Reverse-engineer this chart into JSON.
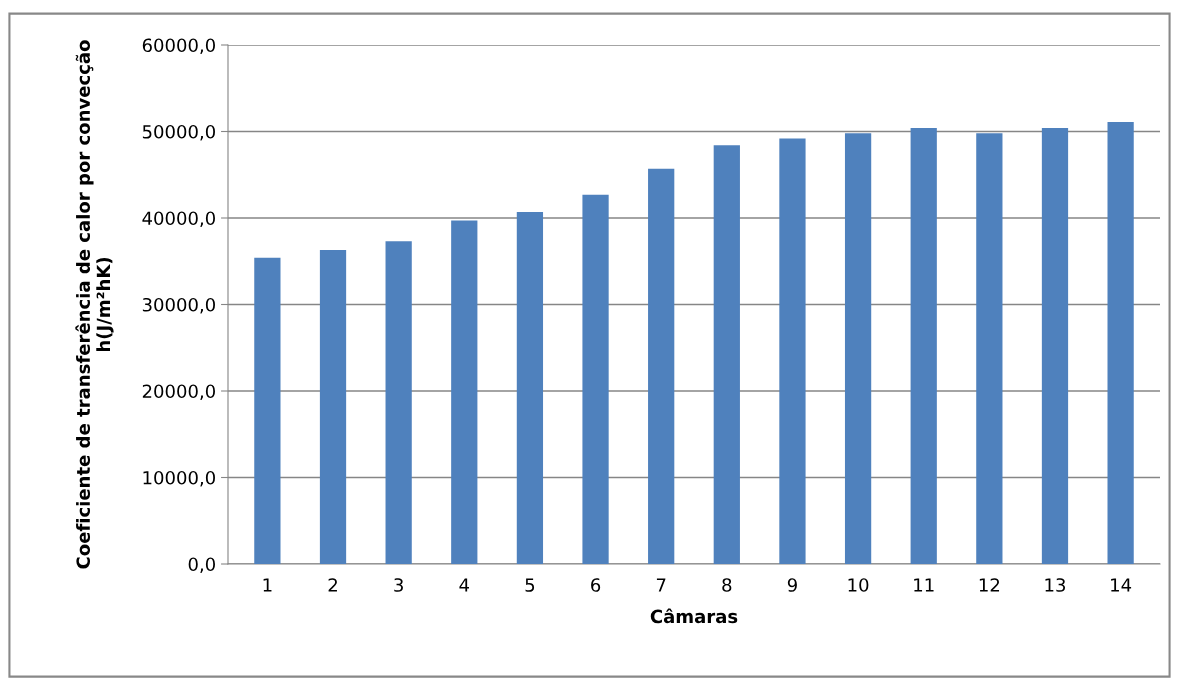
{
  "chart_data": {
    "type": "bar",
    "xlabel": "Câmaras",
    "ylabel": "Coeficiente de transferência de calor por convecção h(J/m²hK)",
    "categories": [
      "1",
      "2",
      "3",
      "4",
      "5",
      "6",
      "7",
      "8",
      "9",
      "10",
      "11",
      "12",
      "13",
      "14"
    ],
    "values": [
      35400,
      36300,
      37300,
      39700,
      40700,
      42700,
      45700,
      48400,
      49200,
      49800,
      50400,
      49800,
      50400,
      51100
    ],
    "color": "#4f81bd",
    "ylim": [
      0,
      60000
    ],
    "yticks": [
      {
        "value": 0,
        "label": "0,0"
      },
      {
        "value": 10000,
        "label": "10000,0"
      },
      {
        "value": 20000,
        "label": "20000,0"
      },
      {
        "value": 30000,
        "label": "30000,0"
      },
      {
        "value": 40000,
        "label": "40000,0"
      },
      {
        "value": 50000,
        "label": "50000,0"
      },
      {
        "value": 60000,
        "label": "60000,0"
      }
    ],
    "grid": "y",
    "legend": false
  }
}
